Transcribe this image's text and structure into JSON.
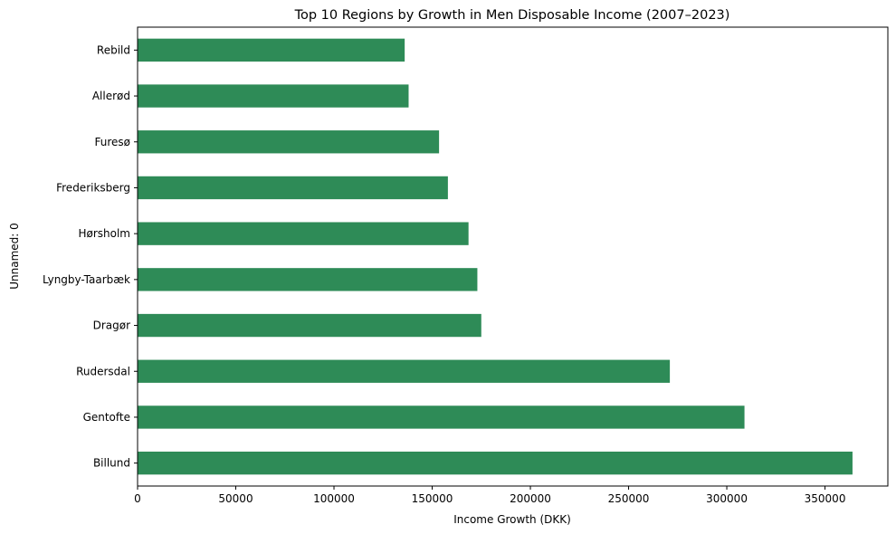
{
  "chart_data": {
    "type": "bar",
    "orientation": "horizontal",
    "title": "Top 10 Regions by Growth in Men Disposable Income (2007–2023)",
    "xlabel": "Income Growth (DKK)",
    "ylabel": "Unnamed: 0",
    "categories": [
      "Billund",
      "Gentofte",
      "Rudersdal",
      "Dragør",
      "Lyngby-Taarbæk",
      "Hørsholm",
      "Frederiksberg",
      "Furesø",
      "Allerød",
      "Rebild"
    ],
    "values": [
      364000,
      309000,
      271000,
      175000,
      173000,
      168500,
      158000,
      153500,
      138000,
      136000
    ],
    "xlim": [
      0,
      382000
    ],
    "xticks": [
      0,
      50000,
      100000,
      150000,
      200000,
      250000,
      300000,
      350000
    ],
    "xtick_labels": [
      "0",
      "50000",
      "100000",
      "150000",
      "200000",
      "250000",
      "300000",
      "350000"
    ],
    "bar_color": "#2e8b57",
    "grid": false,
    "legend": "none"
  }
}
